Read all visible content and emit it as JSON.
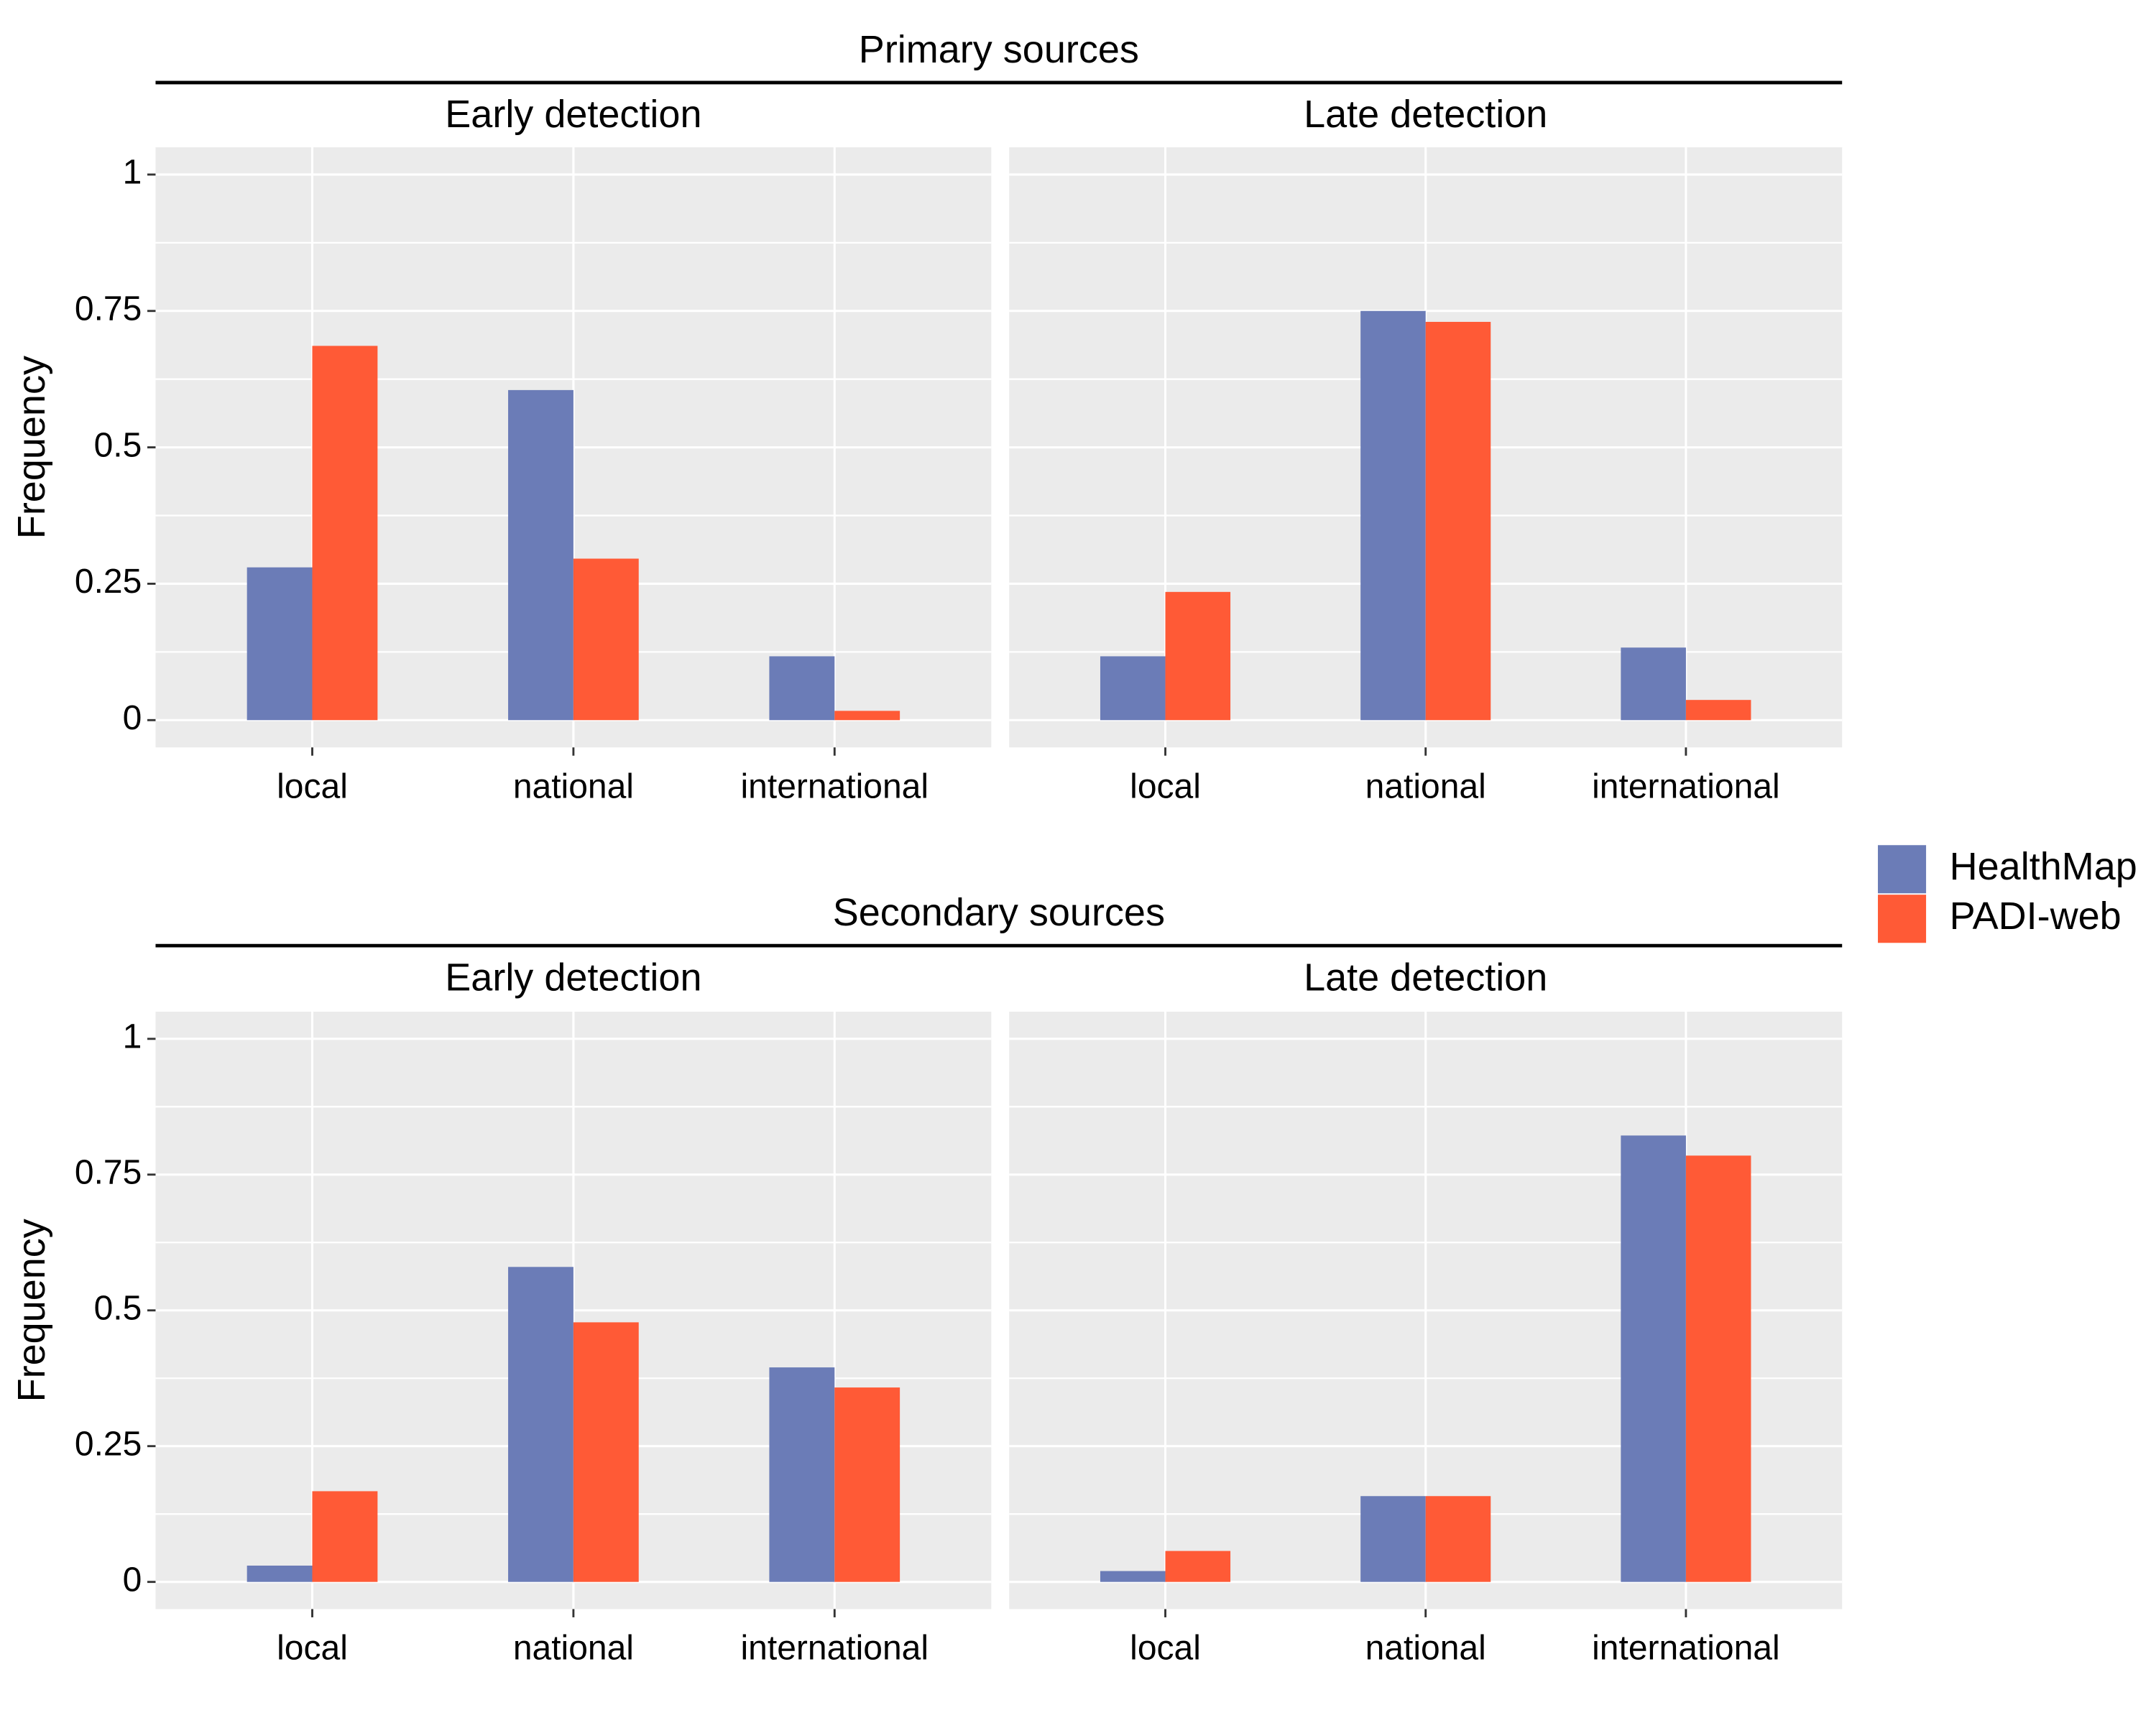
{
  "legend": {
    "placement": "right",
    "items": [
      {
        "name": "HealthMap",
        "color": "#6b7cb7"
      },
      {
        "name": "PADI-web",
        "color": "#ff5a36"
      }
    ]
  },
  "colors": {
    "panel_bg": "#ebebeb",
    "grid_major": "#ffffff",
    "HealthMap": "#6b7cb7",
    "PADI-web": "#ff5a36"
  },
  "chart_data": [
    {
      "type": "bar",
      "group": "Primary sources",
      "facet": "Early detection",
      "categories": [
        "local",
        "national",
        "international"
      ],
      "series": [
        {
          "name": "HealthMap",
          "values": [
            0.28,
            0.605,
            0.117
          ]
        },
        {
          "name": "PADI-web",
          "values": [
            0.686,
            0.296,
            0.017
          ]
        }
      ],
      "ylabel": "Frequency",
      "ylim": [
        0,
        1
      ],
      "yticks": [
        0,
        0.25,
        0.5,
        0.75,
        1
      ],
      "ytick_labels": [
        "0",
        "0.25",
        "0.5",
        "0.75",
        "1"
      ],
      "grid": true
    },
    {
      "type": "bar",
      "group": "Primary sources",
      "facet": "Late detection",
      "categories": [
        "local",
        "national",
        "international"
      ],
      "series": [
        {
          "name": "HealthMap",
          "values": [
            0.117,
            0.75,
            0.133
          ]
        },
        {
          "name": "PADI-web",
          "values": [
            0.235,
            0.73,
            0.037
          ]
        }
      ],
      "ylim": [
        0,
        1
      ],
      "grid": true
    },
    {
      "type": "bar",
      "group": "Secondary sources",
      "facet": "Early detection",
      "categories": [
        "local",
        "national",
        "international"
      ],
      "series": [
        {
          "name": "HealthMap",
          "values": [
            0.03,
            0.58,
            0.395
          ]
        },
        {
          "name": "PADI-web",
          "values": [
            0.167,
            0.478,
            0.358
          ]
        }
      ],
      "ylabel": "Frequency",
      "ylim": [
        0,
        1
      ],
      "yticks": [
        0,
        0.25,
        0.5,
        0.75,
        1
      ],
      "ytick_labels": [
        "0",
        "0.25",
        "0.5",
        "0.75",
        "1"
      ],
      "grid": true
    },
    {
      "type": "bar",
      "group": "Secondary sources",
      "facet": "Late detection",
      "categories": [
        "local",
        "national",
        "international"
      ],
      "series": [
        {
          "name": "HealthMap",
          "values": [
            0.02,
            0.158,
            0.822
          ]
        },
        {
          "name": "PADI-web",
          "values": [
            0.057,
            0.158,
            0.785
          ]
        }
      ],
      "ylim": [
        0,
        1
      ],
      "grid": true
    }
  ]
}
